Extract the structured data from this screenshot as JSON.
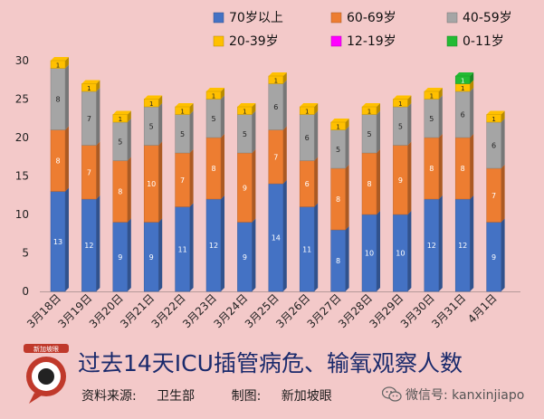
{
  "chart_data": {
    "type": "bar",
    "stacked": true,
    "title": "过去14天ICU插管病危、输氧观察人数",
    "ylim": [
      0,
      30
    ],
    "yticks": [
      0,
      5,
      10,
      15,
      20,
      25,
      30
    ],
    "categories": [
      "3月18日",
      "3月19日",
      "3月20日",
      "3月21日",
      "3月22日",
      "3月23日",
      "3月24日",
      "3月25日",
      "3月26日",
      "3月27日",
      "3月28日",
      "3月29日",
      "3月30日",
      "3月31日",
      "4月1日"
    ],
    "legend_position": "top-right",
    "series": [
      {
        "name": "70岁以上",
        "color": "#4472c4",
        "values": [
          13,
          12,
          9,
          9,
          11,
          12,
          9,
          14,
          11,
          8,
          10,
          10,
          12,
          12,
          9
        ]
      },
      {
        "name": "60-69岁",
        "color": "#ed7d31",
        "values": [
          8,
          7,
          8,
          10,
          7,
          8,
          9,
          7,
          6,
          8,
          8,
          9,
          8,
          8,
          7
        ]
      },
      {
        "name": "40-59岁",
        "color": "#a5a5a5",
        "values": [
          8,
          7,
          5,
          5,
          5,
          5,
          5,
          6,
          6,
          5,
          5,
          5,
          5,
          6,
          6
        ]
      },
      {
        "name": "20-39岁",
        "color": "#ffc000",
        "values": [
          1,
          1,
          1,
          1,
          1,
          1,
          1,
          1,
          1,
          1,
          1,
          1,
          1,
          1,
          1
        ]
      },
      {
        "name": "12-19岁",
        "color": "#ff00ff",
        "values": [
          0,
          0,
          0,
          0,
          0,
          0,
          0,
          0,
          0,
          0,
          0,
          0,
          0,
          0,
          0
        ]
      },
      {
        "name": "0-11岁",
        "color": "#22bb33",
        "values": [
          0,
          0,
          0,
          0,
          0,
          0,
          0,
          0,
          0,
          0,
          0,
          0,
          0,
          1,
          0
        ]
      }
    ]
  },
  "footer": {
    "source_label": "资料来源:",
    "source_value": "卫生部",
    "made_label": "制图:",
    "made_value": "新加坡眼",
    "wechat": "微信号: kanxinjiapo"
  },
  "logo": {
    "text": "新加坡眼"
  }
}
